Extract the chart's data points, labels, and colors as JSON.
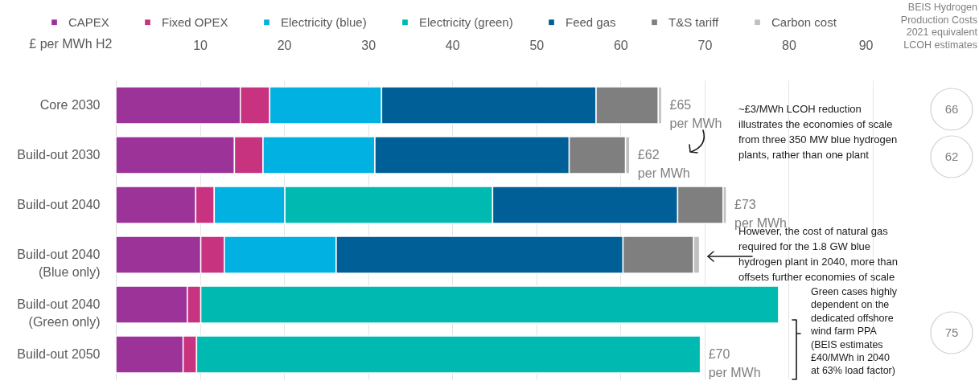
{
  "chart_data": {
    "type": "bar",
    "orientation": "horizontal",
    "stacked": true,
    "xlabel": "£ per MWh H2",
    "categories": [
      "Core 2030",
      "Build-out 2030",
      "Build-out 2040",
      "Build-out 2040\n(Blue only)",
      "Build-out 2040\n(Green only)",
      "Build-out 2050"
    ],
    "series": [
      {
        "name": "CAPEX",
        "color": "#9b3399",
        "values": [
          14.8,
          14.1,
          9.5,
          10.1,
          8.5,
          8.0
        ]
      },
      {
        "name": "Fixed OPEX",
        "color": "#c8337f",
        "values": [
          3.5,
          3.4,
          2.2,
          2.8,
          1.6,
          1.6
        ]
      },
      {
        "name": "Electricity (blue)",
        "color": "#00b1e1",
        "values": [
          13.3,
          13.3,
          8.4,
          13.3,
          null,
          null
        ]
      },
      {
        "name": "Electricity (green)",
        "color": "#00b9b1",
        "values": [
          null,
          null,
          24.7,
          null,
          68.7,
          59.9
        ]
      },
      {
        "name": "Feed gas",
        "color": "#005f96",
        "values": [
          25.5,
          23.1,
          22.0,
          34.1,
          null,
          null
        ]
      },
      {
        "name": "T&S tariff",
        "color": "#7f7f7f",
        "values": [
          7.4,
          6.7,
          5.4,
          8.4,
          null,
          null
        ]
      },
      {
        "name": "Carbon cost",
        "color": "#c0c0c0",
        "values": [
          0.4,
          0.5,
          0.4,
          0.7,
          null,
          null
        ]
      }
    ],
    "xlim": [
      0,
      90
    ],
    "xticks": [
      10,
      20,
      30,
      40,
      50,
      60,
      70,
      80,
      90
    ],
    "grid": "x",
    "legend": "top",
    "annotations": [
      {
        "text": "£65\nper MWh",
        "x": 64.9,
        "y": "Core 2030"
      },
      {
        "text": "£62\nper MWh",
        "x": 61.1,
        "y": "Build-out 2030"
      },
      {
        "text": "£73\nper MWh",
        "x": 72.6,
        "y": "Build-out 2040"
      },
      {
        "text": "£70\nper MWh",
        "x": 69.5,
        "y": "Build-out 2050"
      },
      "~£3/MWh LCOH reduction\nillustrates the economies of scale\nfrom three 350 MW blue hydrogen\nplants, rather than one plant",
      "However,  the cost of natural gas\nrequired for the 1.8 GW blue\nhydrogen plant in 2040, more than\noffsets further economies of scale",
      "Green cases highly\ndependent on the\ndedicated offshore\nwind farm PPA\n(BEIS estimates\n£40/MWh in 2040\nat 63% load factor)",
      "BEIS Hydrogen\nProduction Costs\n2021 equivalent\nLCOH estimates",
      "66",
      "62",
      "75"
    ]
  }
}
